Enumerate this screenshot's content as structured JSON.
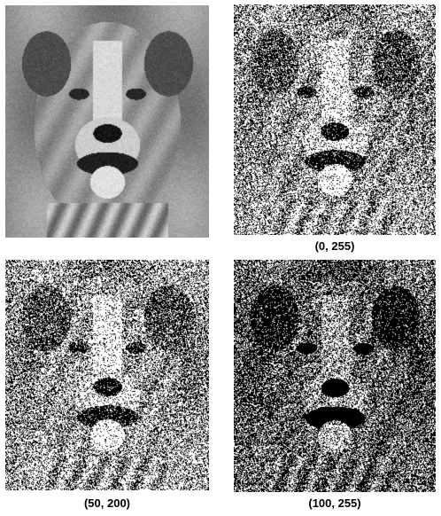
{
  "panels": [
    {
      "id": "original",
      "caption": "",
      "mode": "grayscale"
    },
    {
      "id": "threshold-0-255",
      "caption": "(0, 255)",
      "mode": "binary",
      "low": 0,
      "high": 255,
      "density": 0.55
    },
    {
      "id": "threshold-50-200",
      "caption": "(50, 200)",
      "mode": "binary",
      "low": 50,
      "high": 200,
      "density": 0.62
    },
    {
      "id": "threshold-100-255",
      "caption": "(100, 255)",
      "mode": "binary",
      "low": 100,
      "high": 255,
      "density": 0.42
    }
  ]
}
